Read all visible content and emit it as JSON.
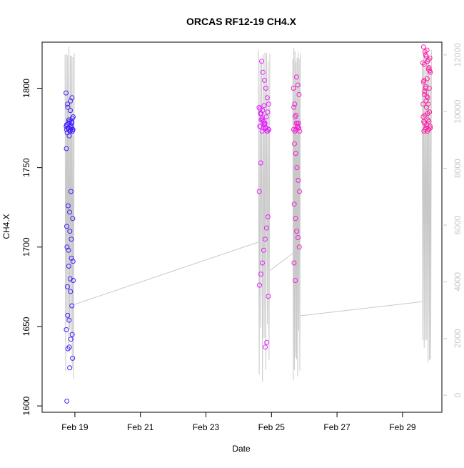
{
  "chart_data": {
    "type": "scatter",
    "title": "ORCAS RF12-19 CH4.X",
    "xlabel": "Date",
    "ylabel": "CH4.X",
    "x_ticks": [
      "Feb 19",
      "Feb 21",
      "Feb 23",
      "Feb 25",
      "Feb 27",
      "Feb 29"
    ],
    "y_ticks": [
      1600,
      1650,
      1700,
      1750,
      1800
    ],
    "y2_ticks": [
      0,
      2000,
      4000,
      6000,
      8000,
      10000,
      12000
    ],
    "xlim": [
      18.0,
      30.2
    ],
    "ylim": [
      1596,
      1829
    ],
    "y2lim": [
      -600,
      12450
    ],
    "grid": false,
    "colors": {
      "flight1": "#3f1fff",
      "flight2": "#e61fff",
      "flight3": "#f51fd4",
      "flight4": "#ff1fa6",
      "secondary_line": "#c8c8c8",
      "axis": "#000000"
    },
    "scatter_flights": [
      {
        "t_start": 18.73,
        "t_end": 18.95,
        "color_key": "flight1",
        "y_values": [
          1797,
          1792,
          1788,
          1781,
          1779,
          1777,
          1776,
          1775,
          1774,
          1773,
          1772,
          1778,
          1780,
          1776,
          1774,
          1775,
          1773,
          1722,
          1713,
          1705,
          1698,
          1691,
          1680,
          1675,
          1663,
          1654,
          1648,
          1642,
          1636,
          1630,
          1624,
          1603,
          1775,
          1778,
          1782,
          1786,
          1790,
          1794,
          1770,
          1762,
          1735,
          1726,
          1718,
          1710,
          1700,
          1693,
          1688,
          1679,
          1672,
          1657,
          1645,
          1637,
          1774,
          1776,
          1775,
          1774,
          1773,
          1777,
          1779,
          1780
        ]
      },
      {
        "t_start": 24.62,
        "t_end": 24.92,
        "color_key": "flight2",
        "y_values": [
          1788,
          1785,
          1782,
          1778,
          1775,
          1773,
          1753,
          1735,
          1719,
          1712,
          1705,
          1698,
          1690,
          1683,
          1676,
          1669,
          1640,
          1637,
          1789,
          1786,
          1780,
          1776,
          1774,
          1773,
          1775,
          1778,
          1780,
          1784,
          1787,
          1790,
          1794,
          1800,
          1805,
          1810,
          1817,
          1776,
          1774,
          1773,
          1775,
          1777,
          1779,
          1781,
          1784
        ]
      },
      {
        "t_start": 25.67,
        "t_end": 25.86,
        "color_key": "flight3",
        "y_values": [
          1800,
          1790,
          1783,
          1778,
          1775,
          1773,
          1765,
          1759,
          1750,
          1742,
          1735,
          1727,
          1718,
          1710,
          1706,
          1700,
          1690,
          1679,
          1807,
          1802,
          1796,
          1788,
          1782,
          1778,
          1776,
          1775,
          1774,
          1773,
          1774,
          1776,
          1778
        ]
      },
      {
        "t_start": 29.62,
        "t_end": 29.85,
        "color_key": "flight4",
        "y_values": [
          1816,
          1800,
          1794,
          1788,
          1783,
          1779,
          1776,
          1774,
          1773,
          1775,
          1778,
          1782,
          1785,
          1790,
          1795,
          1800,
          1805,
          1810,
          1813,
          1817,
          1820,
          1823,
          1826,
          1819,
          1812,
          1806,
          1801,
          1796,
          1790,
          1785,
          1780,
          1777,
          1774,
          1773,
          1775,
          1779,
          1784,
          1792,
          1798,
          1804,
          1811,
          1818,
          1824,
          1821,
          1815
        ]
      }
    ],
    "secondary_series": {
      "axis": "right",
      "color_key": "secondary_line",
      "bursts": [
        {
          "t_start": 18.7,
          "t_end": 18.98,
          "low": 100,
          "high": 12400
        },
        {
          "t_start": 24.6,
          "t_end": 24.95,
          "low": 200,
          "high": 12300
        },
        {
          "t_start": 25.65,
          "t_end": 25.88,
          "low": 100,
          "high": 12350
        },
        {
          "t_start": 29.6,
          "t_end": 29.88,
          "low": 200,
          "high": 12200
        }
      ],
      "ferry_points": [
        {
          "t": 18.98,
          "v": 3200
        },
        {
          "t": 24.6,
          "v": 5400
        },
        {
          "t": 24.95,
          "v": 4400
        },
        {
          "t": 25.65,
          "v": 5000
        },
        {
          "t": 25.88,
          "v": 2800
        },
        {
          "t": 29.6,
          "v": 3300
        }
      ]
    }
  }
}
